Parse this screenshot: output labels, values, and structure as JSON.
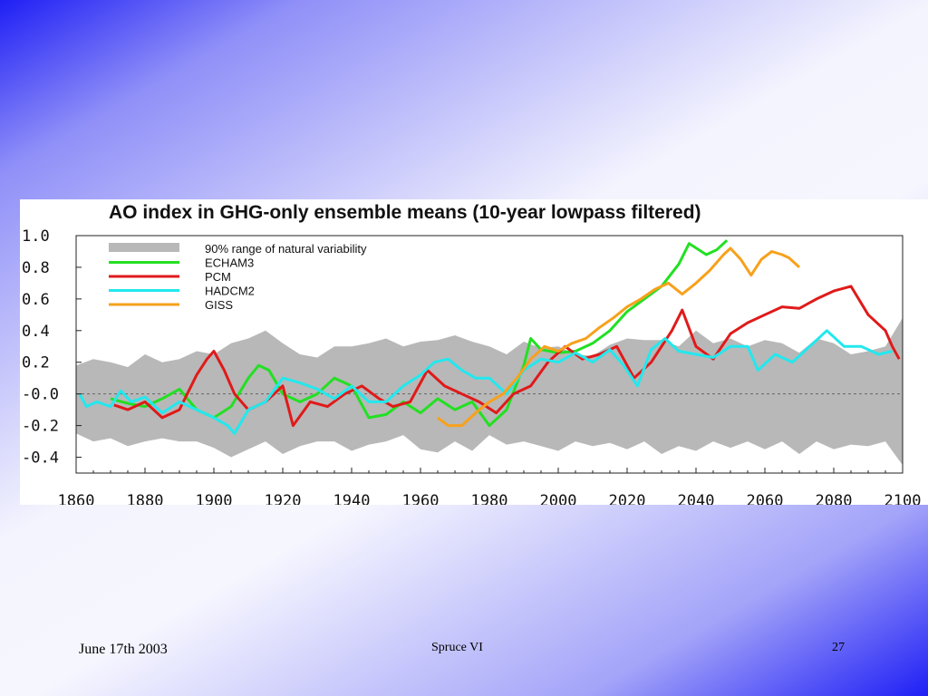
{
  "slide": {
    "footer_date": "June 17th 2003",
    "footer_title": "Spruce  VI",
    "page_number": "27"
  },
  "chart_data": {
    "type": "line",
    "title": "AO index in GHG-only ensemble means (10-year lowpass filtered)",
    "xlabel": "",
    "ylabel": "",
    "xlim": [
      1860,
      2100
    ],
    "ylim": [
      -0.5,
      1.0
    ],
    "x_ticks": [
      1860,
      1880,
      1900,
      1920,
      1940,
      1960,
      1980,
      2000,
      2020,
      2040,
      2060,
      2080,
      2100
    ],
    "x_tick_labels": [
      "1860",
      "1880",
      "1900",
      "1920",
      "1940",
      "1960",
      "1980",
      "2000",
      "2020",
      "2040",
      "2060",
      "2080",
      "2100"
    ],
    "y_ticks": [
      1.0,
      0.8,
      0.6,
      0.4,
      0.2,
      0.0,
      -0.2,
      -0.4
    ],
    "y_tick_labels": [
      "1.0",
      "0.8",
      "0.6",
      "0.4",
      "0.2",
      "-0.0",
      "-0.2",
      "-0.4"
    ],
    "zero_line": true,
    "legend_position": "top-left",
    "band": {
      "name": "90% range of natural variability",
      "color": "#b8b8b8",
      "x": [
        1860,
        1865,
        1870,
        1875,
        1880,
        1885,
        1890,
        1895,
        1900,
        1905,
        1910,
        1915,
        1920,
        1925,
        1930,
        1935,
        1940,
        1945,
        1950,
        1955,
        1960,
        1965,
        1970,
        1975,
        1980,
        1985,
        1990,
        1995,
        2000,
        2005,
        2010,
        2015,
        2020,
        2025,
        2030,
        2035,
        2040,
        2045,
        2050,
        2055,
        2060,
        2065,
        2070,
        2075,
        2080,
        2085,
        2090,
        2095,
        2100
      ],
      "upper": [
        0.18,
        0.22,
        0.2,
        0.17,
        0.25,
        0.2,
        0.22,
        0.27,
        0.25,
        0.32,
        0.35,
        0.4,
        0.32,
        0.25,
        0.23,
        0.3,
        0.3,
        0.32,
        0.35,
        0.3,
        0.33,
        0.34,
        0.37,
        0.33,
        0.3,
        0.25,
        0.33,
        0.29,
        0.3,
        0.25,
        0.24,
        0.31,
        0.35,
        0.34,
        0.34,
        0.3,
        0.4,
        0.32,
        0.35,
        0.3,
        0.34,
        0.32,
        0.26,
        0.35,
        0.32,
        0.25,
        0.27,
        0.3,
        0.48
      ],
      "lower": [
        -0.25,
        -0.3,
        -0.28,
        -0.33,
        -0.3,
        -0.28,
        -0.3,
        -0.3,
        -0.34,
        -0.4,
        -0.35,
        -0.3,
        -0.38,
        -0.33,
        -0.3,
        -0.3,
        -0.36,
        -0.32,
        -0.3,
        -0.26,
        -0.35,
        -0.37,
        -0.3,
        -0.36,
        -0.26,
        -0.32,
        -0.3,
        -0.33,
        -0.36,
        -0.3,
        -0.33,
        -0.31,
        -0.35,
        -0.3,
        -0.38,
        -0.33,
        -0.36,
        -0.3,
        -0.34,
        -0.3,
        -0.35,
        -0.3,
        -0.38,
        -0.3,
        -0.35,
        -0.32,
        -0.33,
        -0.3,
        -0.45
      ]
    },
    "series": [
      {
        "name": "ECHAM3",
        "color": "#22e022",
        "x": [
          1870,
          1875,
          1880,
          1885,
          1890,
          1895,
          1900,
          1905,
          1910,
          1913,
          1916,
          1920,
          1925,
          1930,
          1935,
          1940,
          1945,
          1950,
          1955,
          1960,
          1965,
          1970,
          1975,
          1980,
          1985,
          1990,
          1992,
          1995,
          2000,
          2005,
          2010,
          2015,
          2020,
          2025,
          2030,
          2035,
          2038,
          2043,
          2046,
          2049
        ],
        "values": [
          -0.03,
          -0.06,
          -0.08,
          -0.03,
          0.03,
          -0.1,
          -0.15,
          -0.08,
          0.1,
          0.18,
          0.15,
          0.0,
          -0.05,
          0.0,
          0.1,
          0.05,
          -0.15,
          -0.13,
          -0.05,
          -0.12,
          -0.03,
          -0.1,
          -0.05,
          -0.2,
          -0.1,
          0.18,
          0.35,
          0.28,
          0.26,
          0.27,
          0.32,
          0.4,
          0.52,
          0.6,
          0.68,
          0.82,
          0.95,
          0.88,
          0.91,
          0.97
        ]
      },
      {
        "name": "PCM",
        "color": "#e01a1a",
        "x": [
          1871,
          1875,
          1880,
          1885,
          1890,
          1895,
          1898,
          1900,
          1903,
          1906,
          1910,
          1915,
          1920,
          1923,
          1928,
          1933,
          1938,
          1943,
          1948,
          1952,
          1957,
          1962,
          1967,
          1972,
          1977,
          1982,
          1987,
          1992,
          1997,
          2002,
          2007,
          2012,
          2017,
          2022,
          2027,
          2033,
          2036,
          2040,
          2045,
          2050,
          2055,
          2060,
          2065,
          2070,
          2075,
          2080,
          2085,
          2090,
          2095,
          2097,
          2099
        ],
        "values": [
          -0.07,
          -0.1,
          -0.05,
          -0.15,
          -0.1,
          0.12,
          0.22,
          0.27,
          0.15,
          0.0,
          -0.1,
          -0.05,
          0.05,
          -0.2,
          -0.05,
          -0.08,
          0.0,
          0.05,
          -0.03,
          -0.08,
          -0.05,
          0.15,
          0.05,
          0.0,
          -0.05,
          -0.12,
          0.0,
          0.05,
          0.2,
          0.3,
          0.22,
          0.25,
          0.3,
          0.1,
          0.2,
          0.4,
          0.53,
          0.3,
          0.22,
          0.38,
          0.45,
          0.5,
          0.55,
          0.54,
          0.6,
          0.65,
          0.68,
          0.5,
          0.4,
          0.3,
          0.22
        ]
      },
      {
        "name": "HADCM2",
        "color": "#22e8ee",
        "x": [
          1861,
          1863,
          1866,
          1870,
          1873,
          1876,
          1880,
          1885,
          1890,
          1895,
          1900,
          1904,
          1906,
          1910,
          1915,
          1920,
          1925,
          1930,
          1935,
          1940,
          1945,
          1950,
          1955,
          1960,
          1964,
          1968,
          1972,
          1976,
          1980,
          1985,
          1990,
          1995,
          2000,
          2005,
          2010,
          2015,
          2019,
          2023,
          2027,
          2031,
          2035,
          2040,
          2045,
          2050,
          2055,
          2058,
          2063,
          2068,
          2073,
          2078,
          2083,
          2088,
          2093,
          2097
        ],
        "values": [
          0.0,
          -0.08,
          -0.05,
          -0.08,
          0.02,
          -0.05,
          -0.02,
          -0.12,
          -0.05,
          -0.1,
          -0.15,
          -0.2,
          -0.25,
          -0.1,
          -0.05,
          0.1,
          0.07,
          0.03,
          -0.03,
          0.05,
          -0.05,
          -0.05,
          0.05,
          0.12,
          0.2,
          0.22,
          0.15,
          0.1,
          0.1,
          0.0,
          0.15,
          0.22,
          0.2,
          0.26,
          0.2,
          0.28,
          0.18,
          0.05,
          0.28,
          0.35,
          0.27,
          0.25,
          0.23,
          0.3,
          0.3,
          0.15,
          0.25,
          0.2,
          0.3,
          0.4,
          0.3,
          0.3,
          0.25,
          0.27
        ]
      },
      {
        "name": "GISS",
        "color": "#f7a11c",
        "x": [
          1965,
          1968,
          1972,
          1976,
          1980,
          1984,
          1988,
          1992,
          1996,
          2000,
          2004,
          2008,
          2012,
          2016,
          2020,
          2024,
          2028,
          2032,
          2036,
          2040,
          2044,
          2048,
          2050,
          2053,
          2056,
          2059,
          2062,
          2065,
          2067,
          2070
        ],
        "values": [
          -0.15,
          -0.2,
          -0.2,
          -0.12,
          -0.05,
          0.0,
          0.1,
          0.22,
          0.3,
          0.27,
          0.32,
          0.35,
          0.42,
          0.48,
          0.55,
          0.6,
          0.66,
          0.7,
          0.63,
          0.7,
          0.78,
          0.88,
          0.92,
          0.85,
          0.75,
          0.85,
          0.9,
          0.88,
          0.86,
          0.8
        ]
      }
    ]
  }
}
